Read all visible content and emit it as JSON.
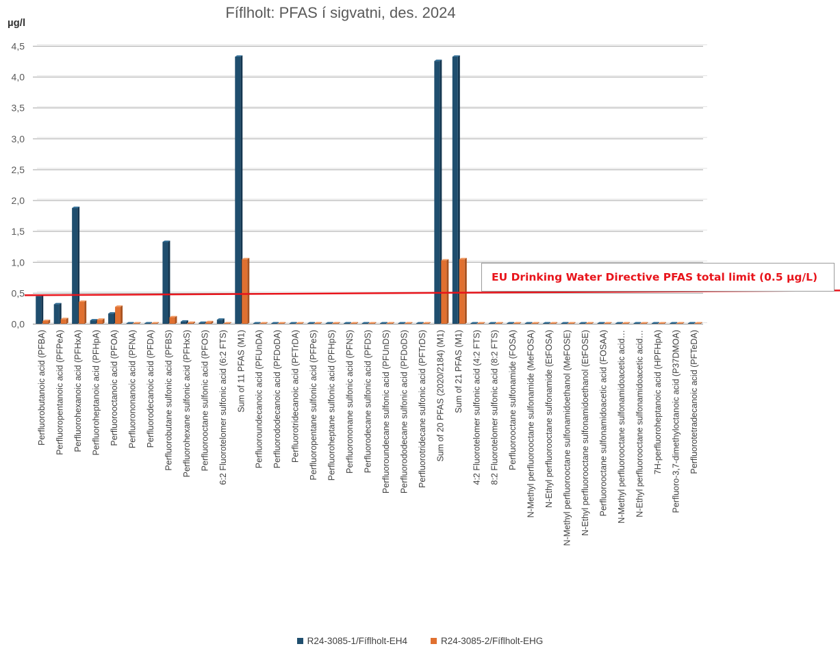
{
  "chart_data": {
    "type": "bar",
    "title": "Fíflholt: PFAS í sigvatni, des. 2024",
    "ylabel": "µg/l",
    "ylim": [
      0,
      4.5
    ],
    "yticks": [
      "0,0",
      "0,5",
      "1,0",
      "1,5",
      "2,0",
      "2,5",
      "3,0",
      "3,5",
      "4,0",
      "4,5"
    ],
    "grid": true,
    "legend_position": "bottom",
    "categories": [
      "Perfluorobutanoic acid (PFBA)",
      "Perfluoropentanoic acid (PFPeA)",
      "Perfluorohexanoic acid (PFHxA)",
      "Perfluoroheptanoic acid (PFHpA)",
      "Perfluorooctanoic acid (PFOA)",
      "Perfluorononanoic acid (PFNA)",
      "Perfluorodecanoic acid (PFDA)",
      "Perfluorobutane sulfonic acid (PFBS)",
      "Perfluorohexane sulfonic acid (PFHxS)",
      "Perfluorooctane sulfonic acid (PFOS)",
      "6:2 Fluorotelomer sulfonic acid (6:2 FTS)",
      "Sum of 11 PFAS (M1)",
      "Perfluoroundecanoic acid (PFUnDA)",
      "Perfluorododecanoic acid (PFDoDA)",
      "Perfluorotridecanoic acid (PFTrDA)",
      "Perfluoropentane sulfonic acid (PFPeS)",
      "Perfluoroheptane sulfonic acid (PFHpS)",
      "Perfluorononane sulfonic acid (PFNS)",
      "Perfluorodecane sulfonic acid (PFDS)",
      "Perfluoroundecane sulfonic acid (PFUnDS)",
      "Perfluorododecane sulfonic acid (PFDoDS)",
      "Perfluorotridecane sulfonic acid (PFTrDS)",
      "Sum of 20 PFAS (2020/2184) (M1)",
      "Sum of 21 PFAS (M1)",
      "4:2 Fluorotelomer sulfonic acid (4:2 FTS)",
      "8:2 Fluorotelomer sulfonic acid (8:2 FTS)",
      "Perfluorooctane sulfonamide (FOSA)",
      "N-Methyl perfluorooctane sulfonamide (MeFOSA)",
      "N-Ethyl perfluorooctane sulfonamide (EtFOSA)",
      "N-Methyl perfluorooctane sulfonamidoethanol (MeFOSE)",
      "N-Ethyl perfluorooctane sulfonamidoethanol (EtFOSE)",
      "Perfluorooctane sulfonamidoacetic acid (FOSAA)",
      "N-Methyl perfluorooctane sulfonamidoacetic acid…",
      "N-Ethyl perfluorooctane sulfonamidoacetic acid…",
      "7H-perfluoroheptanoic acid (HPFHpA)",
      "Perfluoro-3,7-dimethyloctanoic acid (P37DMOA)",
      "Perfluorotetradecanoic acid (PFTeDA)"
    ],
    "series": [
      {
        "name": "R24-3085-1/Fíflholt-EH4",
        "color": "#1f4e6e",
        "values": [
          0.45,
          0.32,
          1.88,
          0.06,
          0.17,
          0.003,
          0.003,
          1.33,
          0.04,
          0.02,
          0.07,
          4.33,
          0.003,
          0.003,
          0.003,
          0.003,
          0.003,
          0.003,
          0.003,
          0.003,
          0.003,
          0.003,
          4.26,
          4.33,
          0.003,
          0.003,
          0.003,
          0.003,
          0.003,
          0.003,
          0.003,
          0.003,
          0.003,
          0.003,
          0.003,
          0.003,
          0.003
        ]
      },
      {
        "name": "R24-3085-2/Fíflholt-EHG",
        "color": "#e07030",
        "values": [
          0.05,
          0.08,
          0.36,
          0.07,
          0.28,
          0.01,
          0.003,
          0.11,
          0.02,
          0.03,
          0.01,
          1.05,
          0.003,
          0.003,
          0.003,
          0.003,
          0.003,
          0.003,
          0.003,
          0.003,
          0.003,
          0.003,
          1.03,
          1.05,
          0.003,
          0.01,
          0.003,
          0.003,
          0.003,
          0.003,
          0.003,
          0.003,
          0.003,
          0.003,
          0.003,
          0.003,
          0.003
        ]
      }
    ],
    "reference_line": {
      "value": 0.5,
      "label": "EU Drinking Water Directive PFAS total limit (0.5 µg/L)",
      "color": "#e8141b"
    }
  }
}
